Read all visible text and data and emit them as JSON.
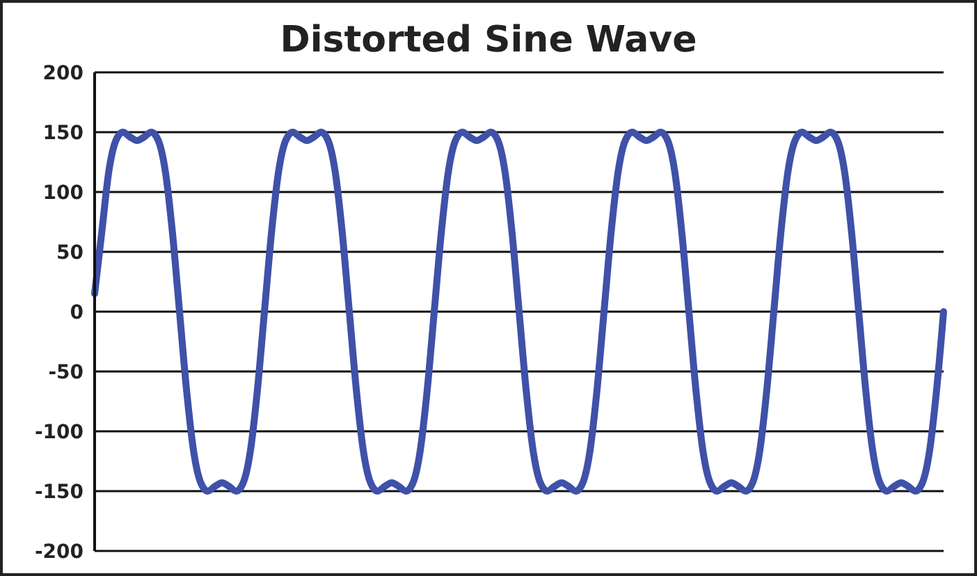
{
  "chart_data": {
    "type": "line",
    "title": "Distorted Sine Wave",
    "categories": [
      null,
      null,
      null,
      null,
      null,
      null,
      null,
      null,
      null,
      null,
      null,
      null,
      null,
      null,
      null,
      null,
      null,
      null,
      null,
      null,
      null,
      null,
      null,
      null,
      null,
      null,
      null,
      null,
      null,
      null,
      null,
      null,
      null,
      null,
      null,
      null,
      null,
      null,
      null,
      null,
      null,
      null,
      null,
      null,
      null,
      null,
      null,
      null,
      null,
      null,
      null,
      null,
      null,
      null,
      null,
      null,
      null,
      null,
      null,
      null,
      null,
      null,
      null,
      null,
      null,
      null,
      null,
      null,
      null,
      null,
      null,
      null,
      null,
      null,
      null,
      null,
      null,
      null,
      null,
      null,
      null,
      null,
      null,
      null,
      null,
      null,
      null,
      null,
      null,
      null,
      null,
      null,
      null,
      null,
      null,
      null,
      null,
      null,
      null,
      null,
      null,
      null,
      null,
      null,
      null,
      null,
      null,
      null,
      null,
      null,
      null,
      null,
      null,
      null,
      null,
      null,
      null,
      null,
      null,
      null,
      null
    ],
    "series": [
      {
        "color": "#3f51a8",
        "values": [
          15,
          66,
          117,
          143,
          150,
          146,
          143,
          146,
          150,
          143,
          117,
          66,
          0,
          -66,
          -117,
          -143,
          -150,
          -146,
          -143,
          -146,
          -150,
          -143,
          -117,
          -66,
          0,
          66,
          117,
          143,
          150,
          146,
          143,
          146,
          150,
          143,
          117,
          66,
          0,
          -66,
          -117,
          -143,
          -150,
          -146,
          -143,
          -146,
          -150,
          -143,
          -117,
          -66,
          0,
          66,
          117,
          143,
          150,
          146,
          143,
          146,
          150,
          143,
          117,
          66,
          0,
          -66,
          -117,
          -143,
          -150,
          -146,
          -143,
          -146,
          -150,
          -143,
          -117,
          -66,
          0,
          66,
          117,
          143,
          150,
          146,
          143,
          146,
          150,
          143,
          117,
          66,
          0,
          -66,
          -117,
          -143,
          -150,
          -146,
          -143,
          -146,
          -150,
          -143,
          -117,
          -66,
          0,
          66,
          117,
          143,
          150,
          146,
          143,
          146,
          150,
          143,
          117,
          66,
          0,
          -66,
          -117,
          -143,
          -150,
          -146,
          -143,
          -146,
          -150,
          -143,
          -117,
          -66,
          0
        ]
      }
    ],
    "ylim": [
      -200,
      200
    ],
    "yticks": [
      -200,
      -150,
      -100,
      -50,
      0,
      50,
      100,
      150,
      200
    ],
    "grid": "y",
    "tick_labels": "y",
    "legend": false,
    "marker": "none",
    "line_style": "solid"
  }
}
